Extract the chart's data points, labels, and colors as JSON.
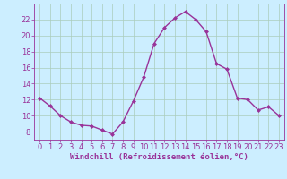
{
  "x": [
    0,
    1,
    2,
    3,
    4,
    5,
    6,
    7,
    8,
    9,
    10,
    11,
    12,
    13,
    14,
    15,
    16,
    17,
    18,
    19,
    20,
    21,
    22,
    23
  ],
  "y": [
    12.2,
    11.2,
    10.0,
    9.2,
    8.8,
    8.7,
    8.2,
    7.7,
    9.2,
    11.8,
    14.8,
    19.0,
    21.0,
    22.2,
    23.0,
    22.0,
    20.5,
    16.5,
    15.8,
    12.2,
    12.0,
    10.7,
    11.1,
    10.0
  ],
  "line_color": "#993399",
  "marker": "D",
  "marker_size": 2.0,
  "bg_color": "#cceeff",
  "grid_color": "#aaccbb",
  "xlabel": "Windchill (Refroidissement éolien,°C)",
  "ylim": [
    7,
    24
  ],
  "xlim": [
    -0.5,
    23.5
  ],
  "yticks": [
    8,
    10,
    12,
    14,
    16,
    18,
    20,
    22
  ],
  "xticks": [
    0,
    1,
    2,
    3,
    4,
    5,
    6,
    7,
    8,
    9,
    10,
    11,
    12,
    13,
    14,
    15,
    16,
    17,
    18,
    19,
    20,
    21,
    22,
    23
  ],
  "xlabel_fontsize": 6.5,
  "tick_fontsize": 6.0,
  "line_width": 1.0,
  "text_color": "#993399",
  "spine_color": "#993399"
}
